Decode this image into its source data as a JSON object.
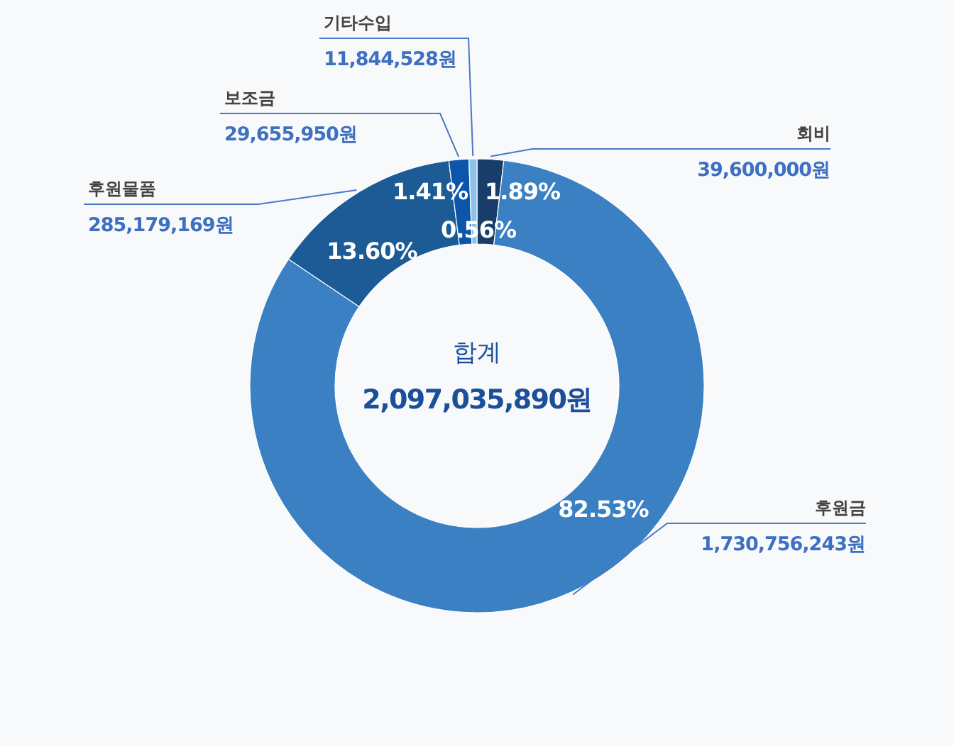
{
  "chart_data": {
    "type": "donut",
    "title": "합계",
    "subtitle": "2,097,035,890원",
    "categories": [
      "회비",
      "후원금",
      "후원물품",
      "보조금",
      "기타수입"
    ],
    "values": [
      39600000,
      1730756243,
      285179169,
      29655950,
      11844528
    ],
    "colors": [
      "#173d68",
      "#3a80c2",
      "#1c5b96",
      "#0c55aa",
      "#8dc1ea"
    ],
    "value_labels": [
      "39,600,000원",
      "1,730,756,243원",
      "285,179,169원",
      "29,655,950원",
      "11,844,528원"
    ],
    "annotations": [
      "1.89%",
      "82.53%",
      "13.60%",
      "1.41%",
      "0.56%"
    ]
  }
}
